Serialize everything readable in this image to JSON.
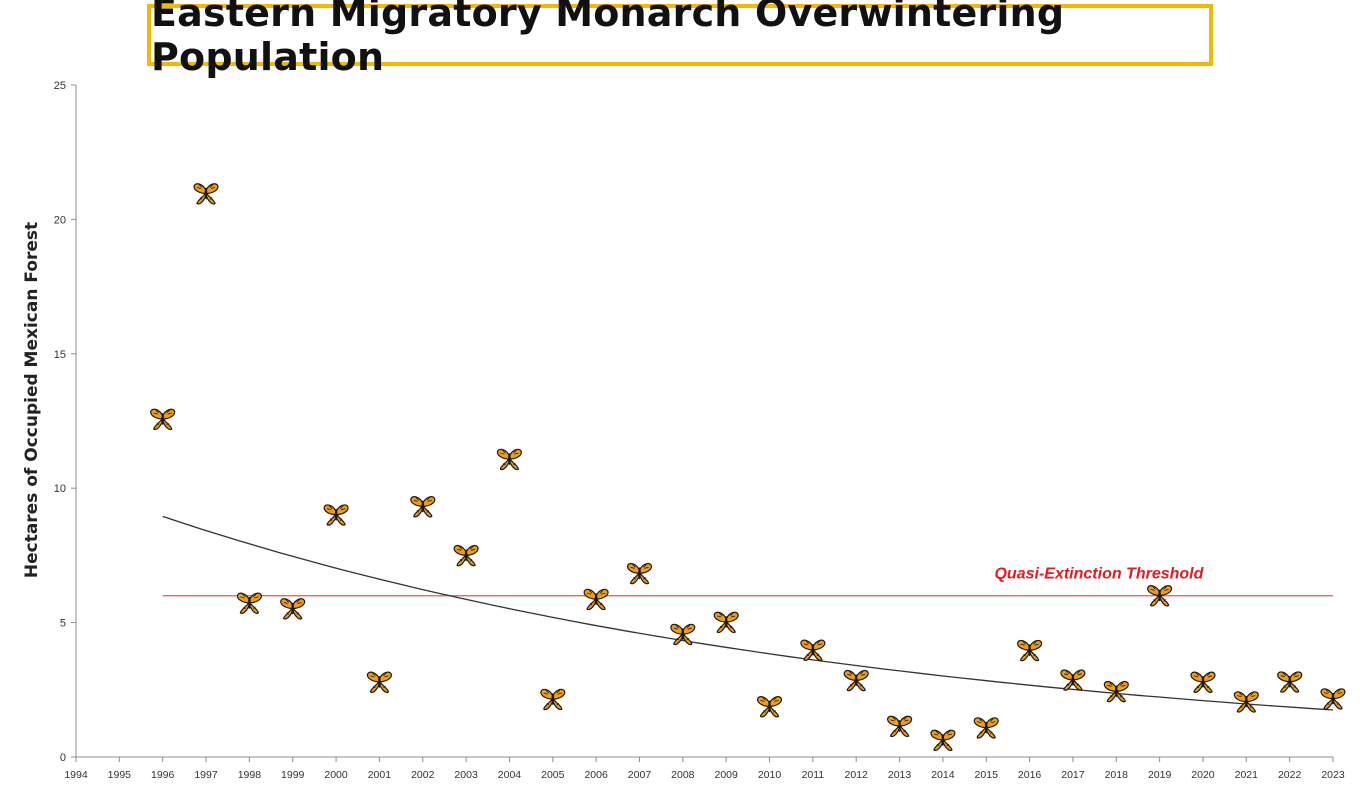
{
  "chart_data": {
    "type": "scatter",
    "title": "Eastern Migratory Monarch Overwintering Population",
    "xlabel": "",
    "ylabel": "Hectares of Occupied Mexican Forest",
    "xlim": [
      1994,
      2023
    ],
    "ylim": [
      0,
      25
    ],
    "y_ticks": [
      0,
      5,
      10,
      15,
      20,
      25
    ],
    "x_ticks": [
      1994,
      1995,
      1996,
      1997,
      1998,
      1999,
      2000,
      2001,
      2002,
      2003,
      2004,
      2005,
      2006,
      2007,
      2008,
      2009,
      2010,
      2011,
      2012,
      2013,
      2014,
      2015,
      2016,
      2017,
      2018,
      2019,
      2020,
      2021,
      2022,
      2023
    ],
    "marker": "monarch-butterfly-icon",
    "series": [
      {
        "x": [
          1996,
          1997,
          1998,
          1999,
          2000,
          2001,
          2002,
          2003,
          2004,
          2005,
          2006,
          2007,
          2008,
          2009,
          2010,
          2011,
          2012,
          2013,
          2014,
          2015,
          2016,
          2017,
          2018,
          2019,
          2020,
          2021,
          2022,
          2023
        ],
        "values": [
          12.61,
          21.0,
          5.77,
          5.56,
          9.05,
          2.83,
          9.36,
          7.54,
          11.12,
          2.19,
          5.91,
          6.87,
          4.61,
          5.06,
          1.92,
          4.02,
          2.89,
          1.19,
          0.67,
          1.13,
          4.01,
          2.91,
          2.48,
          6.05,
          2.83,
          2.1,
          2.84,
          2.21
        ]
      }
    ],
    "trendline": {
      "type": "exponential",
      "x_start": 1996,
      "x_end": 2023,
      "y_start": 8.95,
      "y_end": 1.75,
      "color": "#333333"
    },
    "threshold": {
      "label": "Quasi-Extinction Threshold",
      "value": 6,
      "x_start": 1996,
      "x_end": 2023,
      "color": "#e8191e"
    },
    "colors": {
      "axis": "#8c8c8c",
      "butterfly_wing": "#f39c12",
      "butterfly_body": "#1a1a1a"
    }
  }
}
